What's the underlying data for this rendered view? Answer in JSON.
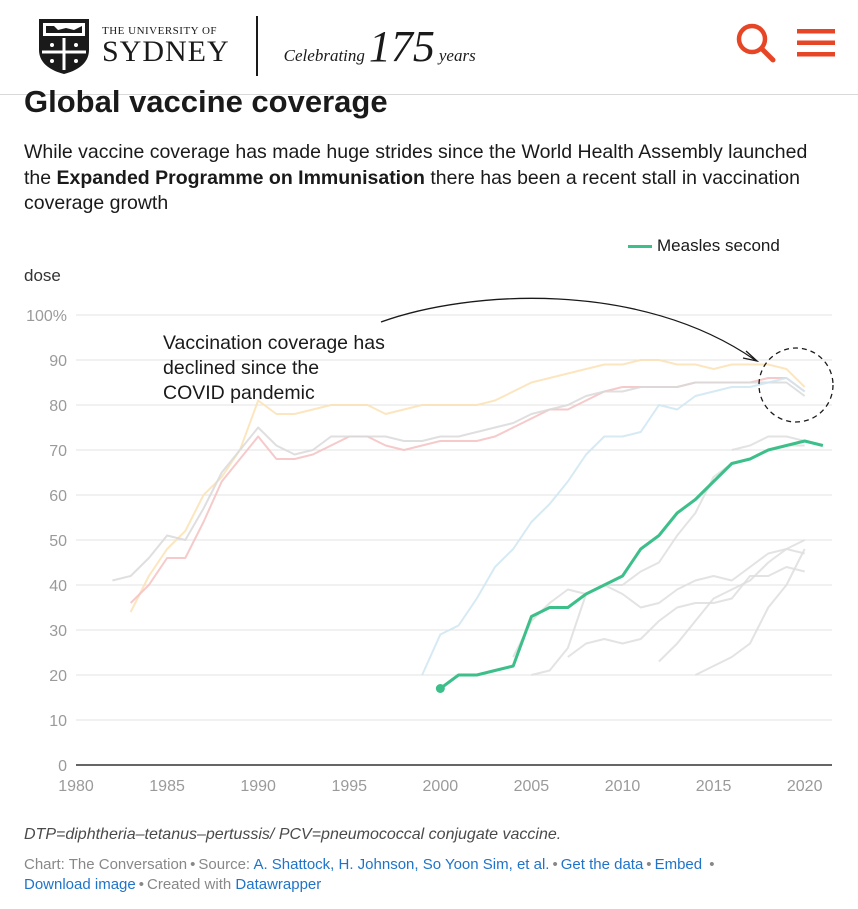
{
  "header": {
    "university_small": "THE UNIVERSITY OF",
    "university_big": "SYDNEY",
    "celebrating": "Celebrating",
    "anniversary": "175",
    "years": "years"
  },
  "article": {
    "title": "Global vaccine coverage",
    "description_before": "While vaccine coverage has made huge strides since the World Health Assembly launched the ",
    "description_bold": "Expanded Programme on Immunisation",
    "description_after": " there has been a recent stall in vaccination coverage growth"
  },
  "chart_data": {
    "type": "line",
    "ylabel": "dose",
    "ylim": [
      0,
      100
    ],
    "y_ticks": [
      "100%",
      "90",
      "80",
      "70",
      "60",
      "50",
      "40",
      "30",
      "20",
      "10",
      "0"
    ],
    "xlim": [
      1980,
      2021.5
    ],
    "x_ticks": [
      "1980",
      "1985",
      "1990",
      "1995",
      "2000",
      "2005",
      "2010",
      "2015",
      "2020"
    ],
    "legend": "top-right",
    "annotation": "Vaccination coverage has declined since the COVID pandemic",
    "highlight": {
      "name": "Measles second",
      "color": "#3dbf8a",
      "x": [
        2000,
        2001,
        2002,
        2003,
        2004,
        2005,
        2006,
        2007,
        2008,
        2009,
        2010,
        2011,
        2012,
        2013,
        2014,
        2015,
        2016,
        2017,
        2018,
        2019,
        2020,
        2021
      ],
      "values": [
        17,
        20,
        20,
        21,
        22,
        33,
        35,
        35,
        38,
        40,
        42,
        48,
        51,
        56,
        59,
        63,
        67,
        68,
        70,
        71,
        72,
        71
      ]
    },
    "background_series": [
      {
        "color": "#fbe2b4",
        "x": [
          1983,
          1984,
          1985,
          1986,
          1987,
          1988,
          1989,
          1990,
          1991,
          1992,
          1993,
          1994,
          1995,
          1996,
          1997,
          1998,
          1999,
          2000,
          2001,
          2002,
          2003,
          2004,
          2005,
          2006,
          2007,
          2008,
          2009,
          2010,
          2011,
          2012,
          2013,
          2014,
          2015,
          2016,
          2017,
          2018,
          2019,
          2020
        ],
        "values": [
          34,
          42,
          48,
          52,
          60,
          64,
          70,
          81,
          78,
          78,
          79,
          80,
          80,
          80,
          78,
          79,
          80,
          80,
          80,
          80,
          81,
          83,
          85,
          86,
          87,
          88,
          89,
          89,
          90,
          90,
          89,
          89,
          88,
          89,
          89,
          89,
          88,
          84
        ]
      },
      {
        "color": "#f4c1c1",
        "x": [
          1983,
          1984,
          1985,
          1986,
          1987,
          1988,
          1989,
          1990,
          1991,
          1992,
          1993,
          1994,
          1995,
          1996,
          1997,
          1998,
          1999,
          2000,
          2001,
          2002,
          2003,
          2004,
          2005,
          2006,
          2007,
          2008,
          2009,
          2010,
          2011,
          2012,
          2013,
          2014,
          2015,
          2016,
          2017,
          2018,
          2019,
          2020
        ],
        "values": [
          36,
          40,
          46,
          46,
          54,
          63,
          68,
          73,
          68,
          68,
          69,
          71,
          73,
          73,
          71,
          70,
          71,
          72,
          72,
          72,
          73,
          75,
          77,
          79,
          79,
          81,
          83,
          84,
          84,
          84,
          84,
          85,
          85,
          85,
          85,
          86,
          86,
          83
        ]
      },
      {
        "color": "#d9d9d9",
        "x": [
          1982,
          1983,
          1984,
          1985,
          1986,
          1987,
          1988,
          1989,
          1990,
          1991,
          1992,
          1993,
          1994,
          1995,
          1996,
          1997,
          1998,
          1999,
          2000,
          2001,
          2002,
          2003,
          2004,
          2005,
          2006,
          2007,
          2008,
          2009,
          2010,
          2011,
          2012,
          2013,
          2014,
          2015,
          2016,
          2017,
          2018,
          2019,
          2020
        ],
        "values": [
          41,
          42,
          46,
          51,
          50,
          57,
          65,
          70,
          75,
          71,
          69,
          70,
          73,
          73,
          73,
          73,
          72,
          72,
          73,
          73,
          74,
          75,
          76,
          78,
          79,
          80,
          82,
          83,
          83,
          84,
          84,
          84,
          85,
          85,
          85,
          85,
          85,
          85,
          82
        ]
      },
      {
        "color": "#cfe6f2",
        "x": [
          1999,
          2000,
          2001,
          2002,
          2003,
          2004,
          2005,
          2006,
          2007,
          2008,
          2009,
          2010,
          2011,
          2012,
          2013,
          2014,
          2015,
          2016,
          2017,
          2018,
          2019,
          2020
        ],
        "values": [
          20,
          29,
          31,
          37,
          44,
          48,
          54,
          58,
          63,
          69,
          73,
          73,
          74,
          80,
          79,
          82,
          83,
          84,
          84,
          85,
          86,
          83
        ]
      },
      {
        "color": "#dedede",
        "x": [
          2016,
          2017,
          2018,
          2019,
          2020
        ],
        "values": [
          70,
          71,
          73,
          73,
          72
        ]
      },
      {
        "color": "#dedede",
        "x": [
          2004,
          2005,
          2006,
          2007,
          2008,
          2009,
          2010,
          2011,
          2012,
          2013,
          2014,
          2015,
          2016,
          2017,
          2018,
          2019,
          2020
        ],
        "values": [
          24,
          32,
          36,
          39,
          38,
          40,
          38,
          35,
          36,
          39,
          41,
          42,
          41,
          44,
          47,
          48,
          47
        ]
      },
      {
        "color": "#dedede",
        "x": [
          2005,
          2006,
          2007,
          2008,
          2009,
          2010,
          2011,
          2012,
          2013,
          2014,
          2015,
          2016,
          2017,
          2018,
          2019,
          2020
        ],
        "values": [
          20,
          21,
          26,
          38,
          40,
          40,
          43,
          45,
          51,
          56,
          64,
          67,
          68,
          70,
          71,
          71
        ]
      },
      {
        "color": "#dedede",
        "x": [
          2007,
          2008,
          2009,
          2010,
          2011,
          2012,
          2013,
          2014,
          2015,
          2016,
          2017,
          2018,
          2019,
          2020
        ],
        "values": [
          24,
          27,
          28,
          27,
          28,
          32,
          35,
          36,
          36,
          37,
          42,
          42,
          44,
          43
        ]
      },
      {
        "color": "#dedede",
        "x": [
          2012,
          2013,
          2014,
          2015,
          2016,
          2017,
          2018,
          2019,
          2020
        ],
        "values": [
          23,
          27,
          32,
          37,
          39,
          41,
          45,
          48,
          50
        ]
      },
      {
        "color": "#dedede",
        "x": [
          2014,
          2015,
          2016,
          2017,
          2018,
          2019,
          2020
        ],
        "values": [
          20,
          22,
          24,
          27,
          35,
          40,
          48
        ]
      }
    ]
  },
  "notes": {
    "abbreviations": "DTP=diphtheria–tetanus–pertussis/ PCV=pneumococcal conjugate vaccine."
  },
  "footer": {
    "chart_credit": "Chart: The Conversation",
    "source_label": "Source:",
    "source_link": "A. Shattock, H. Johnson, So Yoon Sim, et al.",
    "get_data": "Get the data",
    "embed": "Embed",
    "download": "Download image",
    "created_with": "Created with",
    "tool": "Datawrapper"
  }
}
